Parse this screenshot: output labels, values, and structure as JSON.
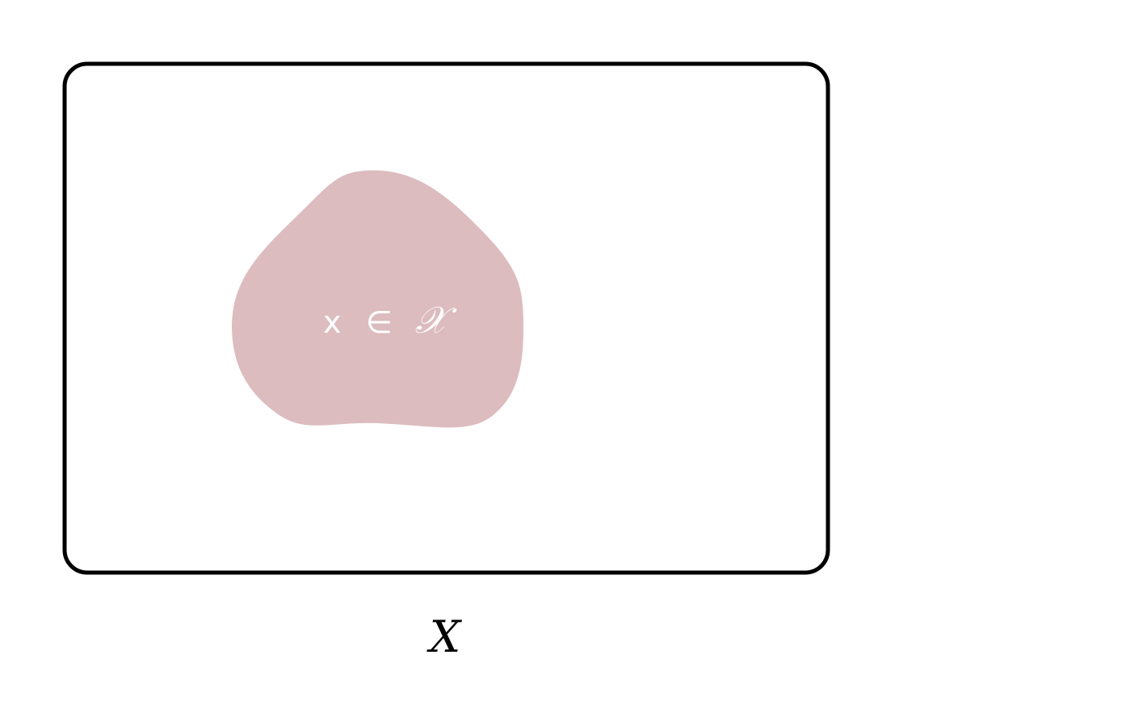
{
  "diagram": {
    "colors": {
      "frame_stroke": "#000000",
      "subset_fill": "#dcbcbf",
      "subset_text": "#ffffff",
      "background": "#ffffff"
    },
    "subset_label": {
      "element": "x",
      "relation": "∈",
      "set": "𝒳"
    },
    "space_label": "X"
  }
}
